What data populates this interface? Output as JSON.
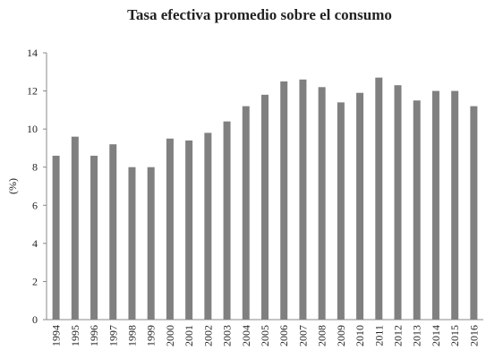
{
  "chart_data": {
    "type": "bar",
    "title": "Tasa efectiva promedio sobre el consumo",
    "ylabel": "(%)",
    "categories": [
      "1994",
      "1995",
      "1996",
      "1997",
      "1998",
      "1999",
      "2000",
      "2001",
      "2002",
      "2003",
      "2004",
      "2005",
      "2006",
      "2007",
      "2008",
      "2009",
      "2010",
      "2011",
      "2012",
      "2013",
      "2014",
      "2015",
      "2016"
    ],
    "values": [
      8.6,
      9.6,
      8.6,
      9.2,
      8.0,
      8.0,
      9.5,
      9.4,
      9.8,
      10.4,
      11.2,
      11.8,
      12.5,
      12.6,
      12.2,
      11.4,
      11.9,
      12.7,
      12.3,
      11.5,
      12.0,
      12.0,
      11.2
    ],
    "color": "#808080",
    "ylim": [
      0,
      14
    ],
    "yticks": [
      0,
      2,
      4,
      6,
      8,
      10,
      12,
      14
    ],
    "grid": false
  }
}
